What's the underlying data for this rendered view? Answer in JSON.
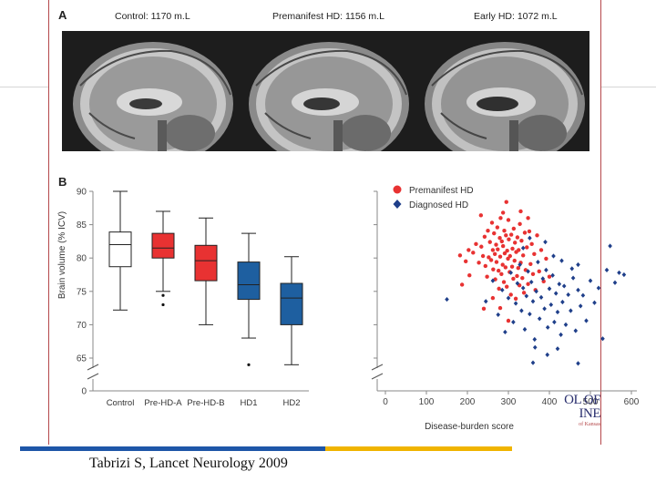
{
  "panel_a": {
    "letter": "A",
    "images": [
      {
        "title": "Control: 1170 m.L"
      },
      {
        "title": "Premanifest HD: 1156 m.L"
      },
      {
        "title": "Early HD: 1072 m.L"
      }
    ]
  },
  "panel_b": {
    "letter": "B"
  },
  "chart_data": [
    {
      "type": "box",
      "ylabel": "Brain volume (% ICV)",
      "ylim": [
        65,
        90
      ],
      "y_ticks": [
        "0",
        "65",
        "70",
        "75",
        "80",
        "85",
        "90"
      ],
      "axis_break": true,
      "categories": [
        "Control",
        "Pre-HD-A",
        "Pre-HD-B",
        "HD1",
        "HD2"
      ],
      "colors": [
        "#ffffff",
        "#e83232",
        "#e83232",
        "#1e5fa0",
        "#1e5fa0"
      ],
      "boxes": [
        {
          "whisker_low": 72.2,
          "q1": 78.7,
          "median": 82.0,
          "q3": 83.9,
          "whisker_high": 90.0,
          "outliers": []
        },
        {
          "whisker_low": 75.0,
          "q1": 80.0,
          "median": 81.5,
          "q3": 83.7,
          "whisker_high": 87.0,
          "outliers": [
            74.4,
            73.0
          ]
        },
        {
          "whisker_low": 70.0,
          "q1": 76.6,
          "median": 79.6,
          "q3": 81.9,
          "whisker_high": 86.0,
          "outliers": []
        },
        {
          "whisker_low": 68.0,
          "q1": 73.8,
          "median": 76.0,
          "q3": 79.4,
          "whisker_high": 83.7,
          "outliers": [
            64.0
          ]
        },
        {
          "whisker_low": 64.0,
          "q1": 70.0,
          "median": 74.0,
          "q3": 76.2,
          "whisker_high": 80.2,
          "outliers": []
        }
      ]
    },
    {
      "type": "scatter",
      "xlabel": "Disease-burden score",
      "xlim": [
        0,
        600
      ],
      "x_ticks": [
        "0",
        "100",
        "200",
        "300",
        "400",
        "500",
        "600"
      ],
      "ylim": [
        65,
        90
      ],
      "axis_break": true,
      "legend": "top-left",
      "series": [
        {
          "name": "Premanifest HD",
          "color": "#e83232",
          "marker": "circle",
          "points": [
            [
              182,
              80.4
            ],
            [
              196,
              79.5
            ],
            [
              203,
              81.2
            ],
            [
              214,
              80.8
            ],
            [
              221,
              82.1
            ],
            [
              228,
              79.3
            ],
            [
              233,
              86.4
            ],
            [
              234,
              81.7
            ],
            [
              238,
              80.3
            ],
            [
              242,
              83.2
            ],
            [
              244,
              78.8
            ],
            [
              248,
              77.2
            ],
            [
              250,
              84.1
            ],
            [
              252,
              80.1
            ],
            [
              255,
              82.4
            ],
            [
              258,
              79.7
            ],
            [
              260,
              85.3
            ],
            [
              262,
              81.2
            ],
            [
              263,
              78.3
            ],
            [
              265,
              83.7
            ],
            [
              267,
              80.6
            ],
            [
              268,
              76.8
            ],
            [
              270,
              82.0
            ],
            [
              271,
              79.4
            ],
            [
              273,
              84.6
            ],
            [
              274,
              81.3
            ],
            [
              276,
              78.1
            ],
            [
              277,
              75.4
            ],
            [
              279,
              83.0
            ],
            [
              280,
              80.2
            ],
            [
              281,
              86.0
            ],
            [
              283,
              77.6
            ],
            [
              284,
              82.5
            ],
            [
              286,
              79.0
            ],
            [
              287,
              81.8
            ],
            [
              289,
              76.4
            ],
            [
              290,
              84.1
            ],
            [
              291,
              80.7
            ],
            [
              293,
              78.6
            ],
            [
              294,
              83.4
            ],
            [
              296,
              75.7
            ],
            [
              297,
              81.1
            ],
            [
              299,
              79.9
            ],
            [
              300,
              85.7
            ],
            [
              301,
              82.8
            ],
            [
              303,
              77.9
            ],
            [
              304,
              80.3
            ],
            [
              306,
              74.5
            ],
            [
              307,
              83.5
            ],
            [
              309,
              78.7
            ],
            [
              310,
              81.4
            ],
            [
              312,
              76.9
            ],
            [
              313,
              84.4
            ],
            [
              315,
              79.6
            ],
            [
              316,
              82.3
            ],
            [
              318,
              73.9
            ],
            [
              319,
              80.9
            ],
            [
              321,
              77.3
            ],
            [
              322,
              83.1
            ],
            [
              324,
              78.5
            ],
            [
              325,
              81.2
            ],
            [
              327,
              75.9
            ],
            [
              328,
              85.1
            ],
            [
              330,
              79.3
            ],
            [
              332,
              82.6
            ],
            [
              334,
              77.0
            ],
            [
              336,
              80.4
            ],
            [
              338,
              74.8
            ],
            [
              340,
              83.8
            ],
            [
              342,
              78.2
            ],
            [
              345,
              81.6
            ],
            [
              348,
              76.1
            ],
            [
              351,
              84.0
            ],
            [
              354,
              79.1
            ],
            [
              357,
              82.1
            ],
            [
              360,
              77.6
            ],
            [
              363,
              80.6
            ],
            [
              366,
              75.2
            ],
            [
              370,
              83.4
            ],
            [
              375,
              78.0
            ],
            [
              380,
              81.2
            ],
            [
              386,
              76.5
            ],
            [
              392,
              79.9
            ],
            [
              400,
              77.2
            ],
            [
              240,
              72.4
            ],
            [
              205,
              77.4
            ],
            [
              187,
              76.0
            ],
            [
              300,
              70.6
            ],
            [
              280,
              72.5
            ],
            [
              262,
              74.0
            ],
            [
              348,
              86.0
            ],
            [
              330,
              87.0
            ],
            [
              295,
              88.4
            ],
            [
              287,
              86.8
            ]
          ]
        },
        {
          "name": "Diagnosed HD",
          "color": "#1f3f8a",
          "marker": "diamond",
          "points": [
            [
              150,
              73.8
            ],
            [
              245,
              73.5
            ],
            [
              262,
              76.6
            ],
            [
              275,
              71.5
            ],
            [
              285,
              75.2
            ],
            [
              292,
              68.9
            ],
            [
              300,
              74.0
            ],
            [
              306,
              77.8
            ],
            [
              312,
              70.4
            ],
            [
              318,
              73.2
            ],
            [
              322,
              76.2
            ],
            [
              328,
              79.0
            ],
            [
              332,
              72.1
            ],
            [
              336,
              75.5
            ],
            [
              340,
              69.3
            ],
            [
              344,
              74.3
            ],
            [
              348,
              78.0
            ],
            [
              352,
              71.6
            ],
            [
              356,
              76.4
            ],
            [
              360,
              73.5
            ],
            [
              364,
              67.8
            ],
            [
              368,
              75.0
            ],
            [
              372,
              79.4
            ],
            [
              376,
              70.9
            ],
            [
              380,
              74.1
            ],
            [
              384,
              76.9
            ],
            [
              388,
              72.4
            ],
            [
              392,
              78.2
            ],
            [
              396,
              69.6
            ],
            [
              400,
              75.4
            ],
            [
              404,
              73.0
            ],
            [
              408,
              77.4
            ],
            [
              412,
              70.4
            ],
            [
              416,
              74.7
            ],
            [
              420,
              71.9
            ],
            [
              424,
              76.1
            ],
            [
              428,
              68.5
            ],
            [
              432,
              73.4
            ],
            [
              436,
              75.8
            ],
            [
              440,
              70.0
            ],
            [
              446,
              74.5
            ],
            [
              452,
              72.1
            ],
            [
              458,
              77.0
            ],
            [
              464,
              69.1
            ],
            [
              470,
              75.2
            ],
            [
              476,
              72.8
            ],
            [
              482,
              74.4
            ],
            [
              490,
              70.6
            ],
            [
              500,
              76.6
            ],
            [
              510,
              73.3
            ],
            [
              520,
              75.5
            ],
            [
              530,
              67.9
            ],
            [
              540,
              78.2
            ],
            [
              548,
              81.8
            ],
            [
              560,
              76.3
            ],
            [
              570,
              77.8
            ],
            [
              582,
              77.5
            ],
            [
              470,
              64.2
            ],
            [
              360,
              64.3
            ],
            [
              395,
              65.5
            ],
            [
              420,
              66.4
            ],
            [
              336,
              81.5
            ],
            [
              352,
              83.0
            ],
            [
              390,
              82.4
            ],
            [
              410,
              80.3
            ],
            [
              430,
              79.6
            ],
            [
              455,
              78.4
            ],
            [
              470,
              79.0
            ],
            [
              365,
              66.6
            ]
          ]
        }
      ]
    }
  ],
  "citation": "Tabrizi S, Lancet Neurology 2009",
  "logo": {
    "line1": "OL OF",
    "line2": "INE",
    "line3": "of Kansas"
  },
  "colors": {
    "figure_border": "#b5484b",
    "bar_blue": "#1e56a8",
    "bar_yellow": "#f0b400"
  }
}
